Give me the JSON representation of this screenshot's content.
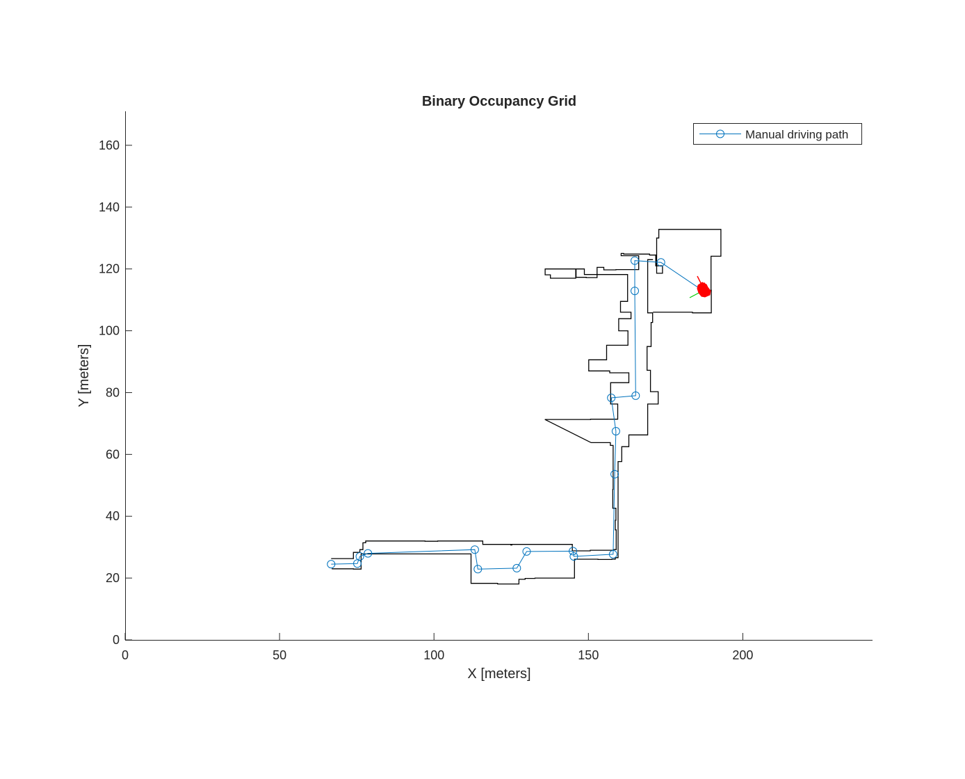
{
  "colors": {
    "path": "#0072BD",
    "walls": "#000000",
    "axis": "#262626",
    "vehicle": "#ff0000",
    "heading_x": "#ff0000",
    "heading_y": "#00cc00",
    "background": "#ffffff"
  },
  "chart_data": {
    "type": "line",
    "title": "Binary Occupancy Grid",
    "xlabel": "X [meters]",
    "ylabel": "Y [meters]",
    "xlim": [
      0,
      242
    ],
    "ylim": [
      0,
      171
    ],
    "xticks": [
      0,
      50,
      100,
      150,
      200
    ],
    "yticks": [
      0,
      20,
      40,
      60,
      80,
      100,
      120,
      140,
      160
    ],
    "grid": false,
    "legend_position": "top-right",
    "series": [
      {
        "name": "Manual driving path",
        "marker": "circle",
        "x": [
          66.7,
          75.2,
          76.0,
          78.6,
          113.2,
          114.2,
          126.8,
          130.0,
          145.0,
          145.3,
          158.0,
          158.5,
          158.9,
          157.4,
          165.3,
          165.0,
          165.0,
          173.5,
          188.5
        ],
        "y": [
          24.5,
          24.7,
          27.0,
          28.0,
          29.2,
          22.9,
          23.2,
          28.6,
          28.7,
          27.0,
          27.7,
          53.6,
          67.5,
          78.3,
          79.0,
          112.9,
          122.7,
          122.1,
          112.0
        ]
      }
    ],
    "map_walls": [
      {
        "x": [
          66.7,
          73.9,
          73.9,
          76.0,
          76.0,
          77.0,
          77.0,
          77.9,
          77.9,
          97.1,
          97.1,
          101.2,
          101.2,
          115.8,
          115.8,
          124.9,
          124.9,
          125.2,
          125.2,
          144.8,
          144.8,
          150.6,
          150.6,
          158.1,
          158.1,
          159.0,
          159.0,
          158.7,
          158.7,
          158.9,
          158.9,
          157.9,
          157.9,
          158.0,
          158.0,
          157.1,
          157.1,
          150.9,
          150.9,
          135.9,
          135.9,
          150.7,
          150.7,
          159.5,
          159.5,
          157.2,
          157.2,
          163.1,
          163.1,
          156.9,
          156.9,
          150.1,
          150.1,
          155.9,
          155.9,
          162.8,
          162.8,
          159.8,
          159.8,
          163.8,
          163.8,
          160.4,
          160.4,
          162.7,
          162.7,
          148.7,
          148.7,
          145.9,
          145.9,
          137.7,
          137.7,
          136.0,
          136.0,
          146.0,
          146.0,
          149.3,
          149.3,
          152.8,
          152.8,
          155.0,
          155.0,
          158.9,
          158.9,
          166.3,
          166.3,
          160.6,
          160.6,
          161.4,
          161.4,
          169.8,
          169.8,
          171.8,
          171.8,
          174.0,
          174.0,
          172.1,
          172.1,
          172.8,
          172.8,
          192.9,
          192.9,
          189.7,
          189.7,
          189.8,
          189.8,
          183.7,
          183.7,
          170.9
        ],
        "y": [
          26.3,
          26.3,
          28.3,
          28.3,
          29.2,
          29.2,
          31.4,
          31.4,
          32.0,
          32.0,
          31.9,
          31.9,
          32.0,
          32.0,
          30.9,
          30.9,
          30.7,
          30.7,
          30.9,
          30.9,
          28.8,
          28.8,
          29.0,
          29.0,
          29.2,
          29.2,
          35.6,
          35.6,
          38.7,
          38.7,
          42.6,
          42.6,
          48.7,
          48.7,
          62.9,
          62.9,
          63.8,
          63.8,
          63.8,
          71.3,
          71.3,
          71.3,
          71.4,
          71.4,
          76.3,
          76.3,
          83.2,
          83.2,
          86.4,
          86.4,
          87.0,
          87.0,
          90.6,
          90.6,
          95.3,
          95.3,
          100.0,
          100.0,
          103.9,
          103.9,
          106.0,
          106.0,
          109.5,
          109.5,
          118.2,
          118.2,
          120.0,
          120.0,
          117.0,
          117.0,
          118.1,
          118.1,
          120.0,
          120.0,
          117.3,
          117.3,
          117.2,
          117.2,
          120.5,
          120.5,
          119.7,
          119.7,
          119.8,
          119.8,
          124.3,
          124.3,
          125.0,
          125.0,
          124.8,
          124.8,
          124.5,
          124.5,
          121.0,
          121.0,
          118.6,
          118.6,
          130.0,
          130.0,
          132.8,
          132.8,
          124.1,
          124.1,
          113.1,
          113.1,
          105.8,
          105.8,
          106.0,
          106.0
        ]
      },
      {
        "x": [
          66.9,
          73.9,
          73.9,
          76.4,
          76.4,
          112.0,
          112.0,
          120.6,
          120.6,
          127.5,
          127.5,
          129.5,
          129.5,
          132.7,
          132.7,
          145.5,
          145.5,
          153.1,
          153.1,
          157.6,
          157.6,
          158.7,
          158.7,
          159.6,
          159.6,
          159.6,
          159.6,
          159.6,
          159.6,
          160.8,
          160.8,
          163.1,
          163.1,
          167.1,
          167.1,
          169.2,
          169.2,
          172.6,
          172.6,
          170.1,
          170.1,
          169.0,
          169.0,
          170.3,
          170.3,
          170.8,
          170.8,
          169.2,
          169.2,
          170.9
        ],
        "y": [
          23.0,
          23.0,
          22.9,
          22.9,
          27.8,
          27.8,
          18.3,
          18.3,
          18.1,
          18.1,
          19.6,
          19.6,
          19.9,
          19.9,
          20.0,
          20.0,
          26.1,
          26.1,
          26.0,
          26.0,
          26.1,
          26.1,
          26.6,
          26.6,
          33.3,
          33.3,
          38.9,
          38.9,
          57.7,
          57.7,
          62.5,
          62.5,
          66.3,
          66.3,
          66.3,
          66.3,
          76.3,
          76.3,
          80.3,
          80.3,
          87.2,
          87.2,
          94.9,
          94.9,
          102.7,
          102.7,
          105.8,
          105.8,
          123.0,
          123.0
        ]
      }
    ]
  }
}
